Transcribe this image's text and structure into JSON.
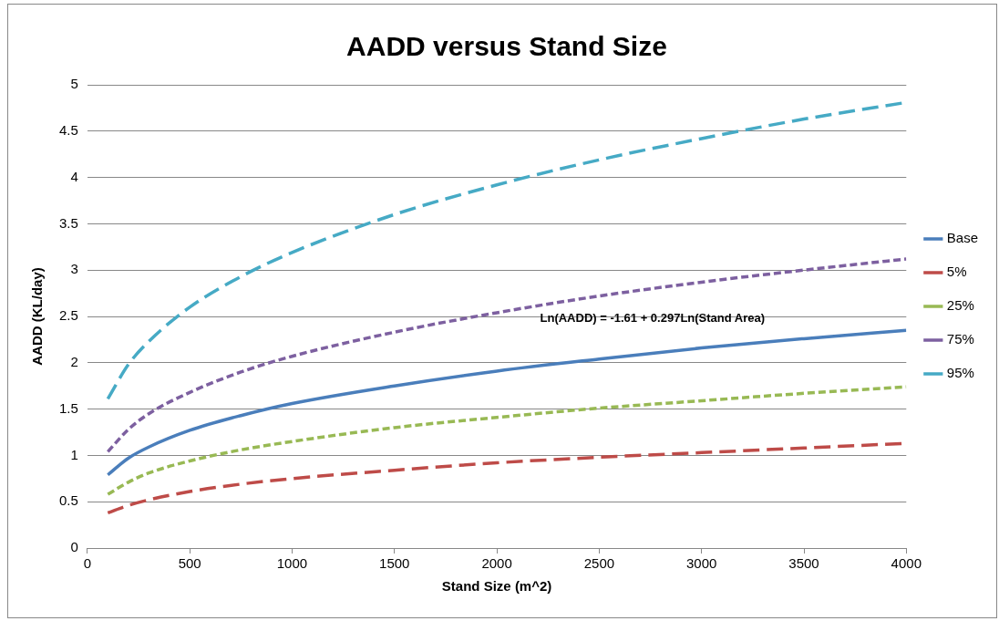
{
  "chart_data": {
    "type": "line",
    "title": "AADD versus Stand Size",
    "xlabel": "Stand Size (m^2)",
    "ylabel": "AADD (KL/day)",
    "x": [
      100,
      200,
      300,
      500,
      750,
      1000,
      1500,
      2000,
      2500,
      3000,
      3500,
      4000
    ],
    "xlim": [
      0,
      4000
    ],
    "xticks": [
      0,
      500,
      1000,
      1500,
      2000,
      2500,
      3000,
      3500,
      4000
    ],
    "ylim": [
      0,
      5
    ],
    "yticks": [
      0,
      0.5,
      1,
      1.5,
      2,
      2.5,
      3,
      3.5,
      4,
      4.5,
      5
    ],
    "grid": "y",
    "legend": "right",
    "marker": "none",
    "annotations": [
      "Ln(AADD) = -1.61 + 0.297Ln(Stand Area)"
    ],
    "series": [
      {
        "name": "Base",
        "color": "#4a7ebb",
        "line_style": "solid",
        "values": [
          0.79,
          0.97,
          1.09,
          1.27,
          1.43,
          1.56,
          1.75,
          1.91,
          2.04,
          2.16,
          2.26,
          2.35
        ]
      },
      {
        "name": "5%",
        "color": "#be4b48",
        "line_style": "dashed",
        "values": [
          0.38,
          0.46,
          0.52,
          0.61,
          0.69,
          0.75,
          0.84,
          0.92,
          0.98,
          1.03,
          1.08,
          1.13
        ]
      },
      {
        "name": "25%",
        "color": "#98b954",
        "line_style": "dotted",
        "values": [
          0.58,
          0.71,
          0.81,
          0.94,
          1.06,
          1.15,
          1.3,
          1.41,
          1.51,
          1.59,
          1.67,
          1.74
        ]
      },
      {
        "name": "75%",
        "color": "#7d60a0",
        "line_style": "dotted",
        "values": [
          1.04,
          1.28,
          1.45,
          1.68,
          1.9,
          2.07,
          2.33,
          2.54,
          2.72,
          2.87,
          3.0,
          3.12
        ]
      },
      {
        "name": "95%",
        "color": "#46aac5",
        "line_style": "dashed",
        "values": [
          1.61,
          1.98,
          2.23,
          2.6,
          2.93,
          3.19,
          3.6,
          3.92,
          4.19,
          4.42,
          4.63,
          4.81
        ]
      }
    ]
  }
}
